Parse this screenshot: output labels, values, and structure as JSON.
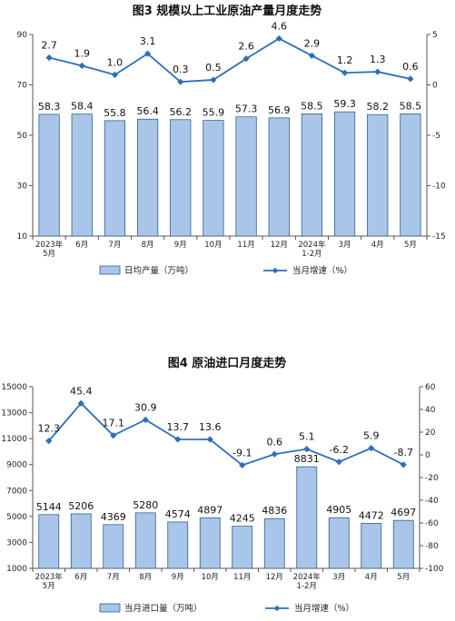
{
  "chart_data": [
    {
      "type": "bar",
      "title": "图3  规模以上工业原油产量月度走势",
      "categories": [
        [
          "2023年",
          "5月"
        ],
        [
          "6月"
        ],
        [
          "7月"
        ],
        [
          "8月"
        ],
        [
          "9月"
        ],
        [
          "10月"
        ],
        [
          "11月"
        ],
        [
          "12月"
        ],
        [
          "2024年",
          "1-2月"
        ],
        [
          "3月"
        ],
        [
          "4月"
        ],
        [
          "5月"
        ]
      ],
      "series": [
        {
          "name": "日均产量（万吨）",
          "type": "bar",
          "axis": "left",
          "values": [
            58.3,
            58.4,
            55.8,
            56.4,
            56.2,
            55.9,
            57.3,
            56.9,
            58.5,
            59.3,
            58.2,
            58.5
          ]
        },
        {
          "name": "当月增速（%）",
          "type": "line",
          "axis": "right",
          "values": [
            2.7,
            1.9,
            1.0,
            3.1,
            0.3,
            0.5,
            2.6,
            4.6,
            2.9,
            1.2,
            1.3,
            0.6
          ]
        }
      ],
      "yleft": {
        "min": 10,
        "max": 90,
        "ticks": [
          10,
          30,
          50,
          70,
          90
        ]
      },
      "yright": {
        "min": -15,
        "max": 5,
        "ticks": [
          5,
          0,
          -5,
          -10,
          -15
        ]
      },
      "bar_labels": [
        "58.3",
        "58.4",
        "55.8",
        "56.4",
        "56.2",
        "55.9",
        "57.3",
        "56.9",
        "58.5",
        "59.3",
        "58.2",
        "58.5"
      ],
      "line_labels": [
        "2.7",
        "1.9",
        "1.0",
        "3.1",
        "0.3",
        "0.5",
        "2.6",
        "4.6",
        "2.9",
        "1.2",
        "1.3",
        "0.6"
      ],
      "grid": false,
      "legend": "bottom",
      "colors": {
        "bar_fill": "#a9c6e8",
        "bar_stroke": "#2f5f94",
        "line": "#2e6fb6"
      }
    },
    {
      "type": "bar",
      "title": "图4  原油进口月度走势",
      "categories": [
        [
          "2023年",
          "5月"
        ],
        [
          "6月"
        ],
        [
          "7月"
        ],
        [
          "8月"
        ],
        [
          "9月"
        ],
        [
          "10月"
        ],
        [
          "11月"
        ],
        [
          "12月"
        ],
        [
          "2024年",
          "1-2月"
        ],
        [
          "3月"
        ],
        [
          "4月"
        ],
        [
          "5月"
        ]
      ],
      "series": [
        {
          "name": "当月进口量（万吨）",
          "type": "bar",
          "axis": "left",
          "values": [
            5144,
            5206,
            4369,
            5280,
            4574,
            4897,
            4245,
            4836,
            8831,
            4905,
            4472,
            4697
          ]
        },
        {
          "name": "当月增速（%）",
          "type": "line",
          "axis": "right",
          "values": [
            12.3,
            45.4,
            17.1,
            30.9,
            13.7,
            13.6,
            -9.1,
            0.6,
            5.1,
            -6.2,
            5.9,
            -8.7
          ]
        }
      ],
      "yleft": {
        "min": 1000,
        "max": 15000,
        "ticks": [
          1000,
          3000,
          5000,
          7000,
          9000,
          11000,
          13000,
          15000
        ]
      },
      "yright": {
        "min": -100,
        "max": 60,
        "ticks": [
          60,
          40,
          20,
          0,
          -20,
          -40,
          -60,
          -80,
          -100
        ]
      },
      "bar_labels": [
        "5144",
        "5206",
        "4369",
        "5280",
        "4574",
        "4897",
        "4245",
        "4836",
        "8831",
        "4905",
        "4472",
        "4697"
      ],
      "line_labels": [
        "12.3",
        "45.4",
        "17.1",
        "30.9",
        "13.7",
        "13.6",
        "-9.1",
        "0.6",
        "5.1",
        "-6.2",
        "5.9",
        "-8.7"
      ],
      "grid": false,
      "legend": "bottom",
      "colors": {
        "bar_fill": "#a9c6e8",
        "bar_stroke": "#2f5f94",
        "line": "#2e6fb6"
      }
    }
  ]
}
